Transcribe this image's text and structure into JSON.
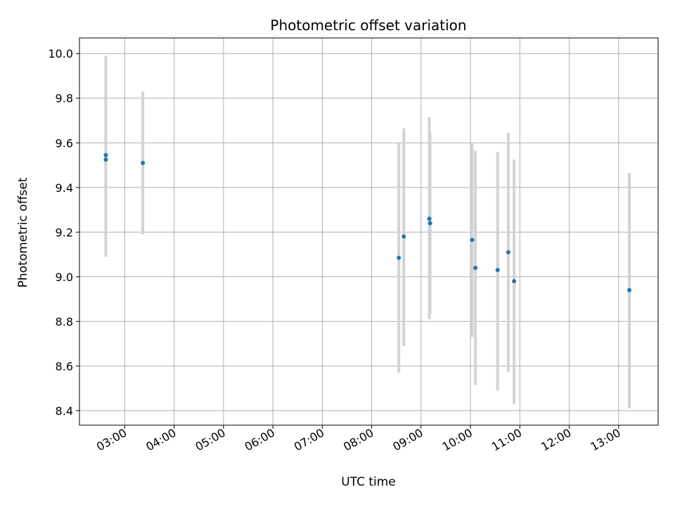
{
  "chart_data": {
    "type": "scatter",
    "title": "Photometric offset variation",
    "xlabel": "UTC time",
    "ylabel": "Photometric offset",
    "x_ticks": [
      "03:00",
      "04:00",
      "05:00",
      "06:00",
      "07:00",
      "08:00",
      "09:00",
      "10:00",
      "11:00",
      "12:00",
      "13:00"
    ],
    "y_ticks": [
      "8.4",
      "8.6",
      "8.8",
      "9.0",
      "9.2",
      "9.4",
      "9.6",
      "9.8",
      "10.0"
    ],
    "xlim": [
      "02:05",
      "13:48"
    ],
    "ylim": [
      8.335,
      10.07
    ],
    "grid": true,
    "point_color": "#1f77b4",
    "errorbar_color": "#d3d3d3",
    "points": [
      {
        "t": "02:37",
        "y": 9.545,
        "lo": 9.09,
        "hi": 9.99
      },
      {
        "t": "02:37",
        "y": 9.525,
        "lo": 9.09,
        "hi": 9.99
      },
      {
        "t": "03:22",
        "y": 9.51,
        "lo": 9.19,
        "hi": 9.83
      },
      {
        "t": "08:33",
        "y": 9.085,
        "lo": 8.57,
        "hi": 9.6
      },
      {
        "t": "08:39",
        "y": 9.18,
        "lo": 8.69,
        "hi": 9.665
      },
      {
        "t": "09:10",
        "y": 9.26,
        "lo": 8.81,
        "hi": 9.715
      },
      {
        "t": "09:11",
        "y": 9.24,
        "lo": 8.835,
        "hi": 9.645
      },
      {
        "t": "10:02",
        "y": 9.165,
        "lo": 8.73,
        "hi": 9.6
      },
      {
        "t": "10:06",
        "y": 9.04,
        "lo": 8.515,
        "hi": 9.565
      },
      {
        "t": "10:33",
        "y": 9.03,
        "lo": 8.49,
        "hi": 9.56
      },
      {
        "t": "10:46",
        "y": 9.11,
        "lo": 8.575,
        "hi": 9.645
      },
      {
        "t": "10:53",
        "y": 8.98,
        "lo": 8.43,
        "hi": 9.525
      },
      {
        "t": "13:13",
        "y": 8.94,
        "lo": 8.41,
        "hi": 9.465
      }
    ]
  }
}
